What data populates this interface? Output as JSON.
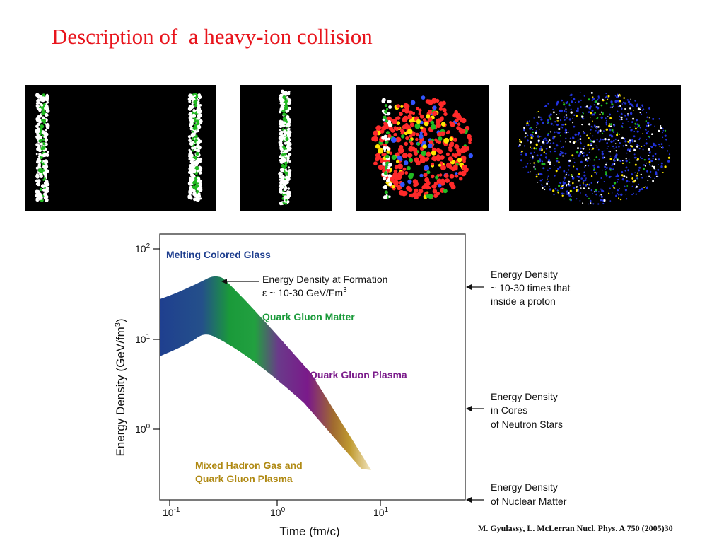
{
  "slide": {
    "title": "Description of  a heavy-ion collision",
    "citation": "M. Gyulassy, L. McLerran Nucl. Phys. A 750 (2005)30"
  },
  "collision_frames": [
    {
      "stage": "approaching-nuclei",
      "colors": [
        "#ffffff",
        "#22bb22"
      ]
    },
    {
      "stage": "overlapping-nuclei",
      "colors": [
        "#ffffff",
        "#22bb22"
      ]
    },
    {
      "stage": "dense-matter",
      "colors": [
        "#ff2a2a",
        "#22bb22",
        "#ffe600",
        "#3355ff"
      ]
    },
    {
      "stage": "expanding-fireball",
      "colors": [
        "#2233dd",
        "#ffffff",
        "#ffe600",
        "#22bb22"
      ]
    }
  ],
  "diagram": {
    "y_axis_label": "Energy Density (GeV/fm",
    "y_axis_sup": "3",
    "y_axis_close": ")",
    "x_axis_label": "Time (fm/c)",
    "y_ticks": [
      {
        "base": "10",
        "exp": "2"
      },
      {
        "base": "10",
        "exp": "1"
      },
      {
        "base": "10",
        "exp": "0"
      }
    ],
    "x_ticks": [
      {
        "base": "10",
        "exp": "-1"
      },
      {
        "base": "10",
        "exp": "0"
      },
      {
        "base": "10",
        "exp": "1"
      }
    ],
    "regions": {
      "glass": "Melting Colored Glass",
      "matter": "Quark Gluon Matter",
      "plasma": "Quark Gluon Plasma",
      "mixed_line1": "Mixed Hadron Gas and",
      "mixed_line2": "Quark Gluon Plasma"
    },
    "formation": {
      "line1": "Energy Density at Formation",
      "line2_prefix": "ε ~ 10-30 GeV/Fm",
      "line2_sup": "3"
    },
    "right_annotations": {
      "proton": [
        "Energy Density",
        "~ 10-30 times that",
        "inside a proton"
      ],
      "neutron": [
        "Energy Density",
        "in Cores",
        "of Neutron Stars"
      ],
      "nuclear": [
        "Energy Density",
        "of Nuclear Matter"
      ]
    },
    "colors": {
      "glass": "#1f3f8f",
      "matter": "#1a9a3a",
      "plasma": "#7a1a8a",
      "mixed": "#b08a14"
    }
  }
}
